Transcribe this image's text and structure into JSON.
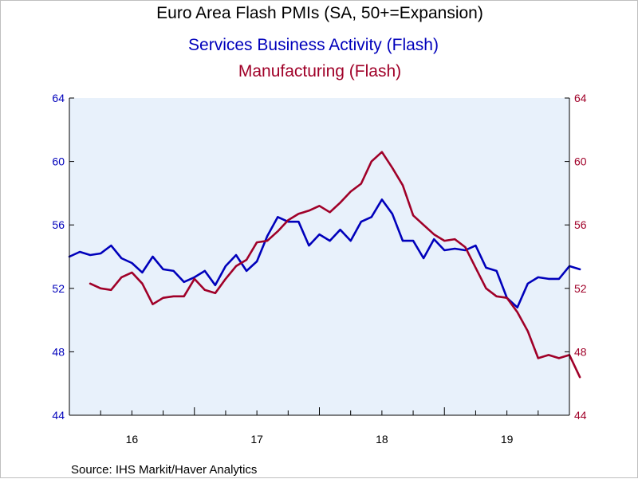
{
  "chart_data": {
    "type": "line",
    "title": "Euro Area Flash PMIs (SA, 50+=Expansion)",
    "subtitle": "Services Business Activity (Flash)",
    "subtitle2": "Manufacturing (Flash)",
    "source": "Source:  IHS Markit/Haver Analytics",
    "ylim": [
      44,
      64
    ],
    "y_ticks": [
      "44",
      "48",
      "52",
      "56",
      "60",
      "64"
    ],
    "x_ticks": [
      {
        "label": "16",
        "year": 2016
      },
      {
        "label": "17",
        "year": 2017
      },
      {
        "label": "18",
        "year": 2018
      },
      {
        "label": "19",
        "year": 2019
      }
    ],
    "x_start": "2015-01",
    "x_end": "2019-01",
    "colors": {
      "services": "#0000bb",
      "manufacturing": "#a00028",
      "plot_bg": "#e8f1fb",
      "axis": "#000000"
    },
    "series": [
      {
        "key": "services",
        "values": [
          54.0,
          54.3,
          54.1,
          54.2,
          54.7,
          53.9,
          53.6,
          53.0,
          54.0,
          53.2,
          53.1,
          52.4,
          52.7,
          53.1,
          52.2,
          53.4,
          54.1,
          53.1,
          53.7,
          55.3,
          56.5,
          56.2,
          56.2,
          54.7,
          55.4,
          55.0,
          55.7,
          55.0,
          56.2,
          56.5,
          57.6,
          56.7,
          55.0,
          55.0,
          53.9,
          55.1,
          54.4,
          54.5,
          54.4,
          54.7,
          53.3,
          53.1,
          51.4,
          50.8,
          52.3,
          52.7,
          52.6,
          52.6,
          53.4,
          53.2
        ],
        "x_start": "2015-01"
      },
      {
        "key": "manufacturing",
        "values": [
          52.3,
          52.0,
          51.9,
          52.7,
          53.0,
          52.3,
          51.0,
          51.4,
          51.5,
          51.5,
          52.6,
          51.9,
          51.7,
          52.6,
          53.4,
          53.8,
          54.9,
          55.0,
          55.6,
          56.3,
          56.7,
          56.9,
          57.2,
          56.8,
          57.4,
          58.1,
          58.6,
          60.0,
          60.6,
          59.6,
          58.5,
          56.6,
          56.0,
          55.4,
          55.0,
          55.1,
          54.6,
          53.3,
          52.0,
          51.5,
          51.4,
          50.5,
          49.3,
          47.6,
          47.8,
          47.6,
          47.8,
          46.4
        ],
        "x_start": "2015-03"
      }
    ]
  }
}
